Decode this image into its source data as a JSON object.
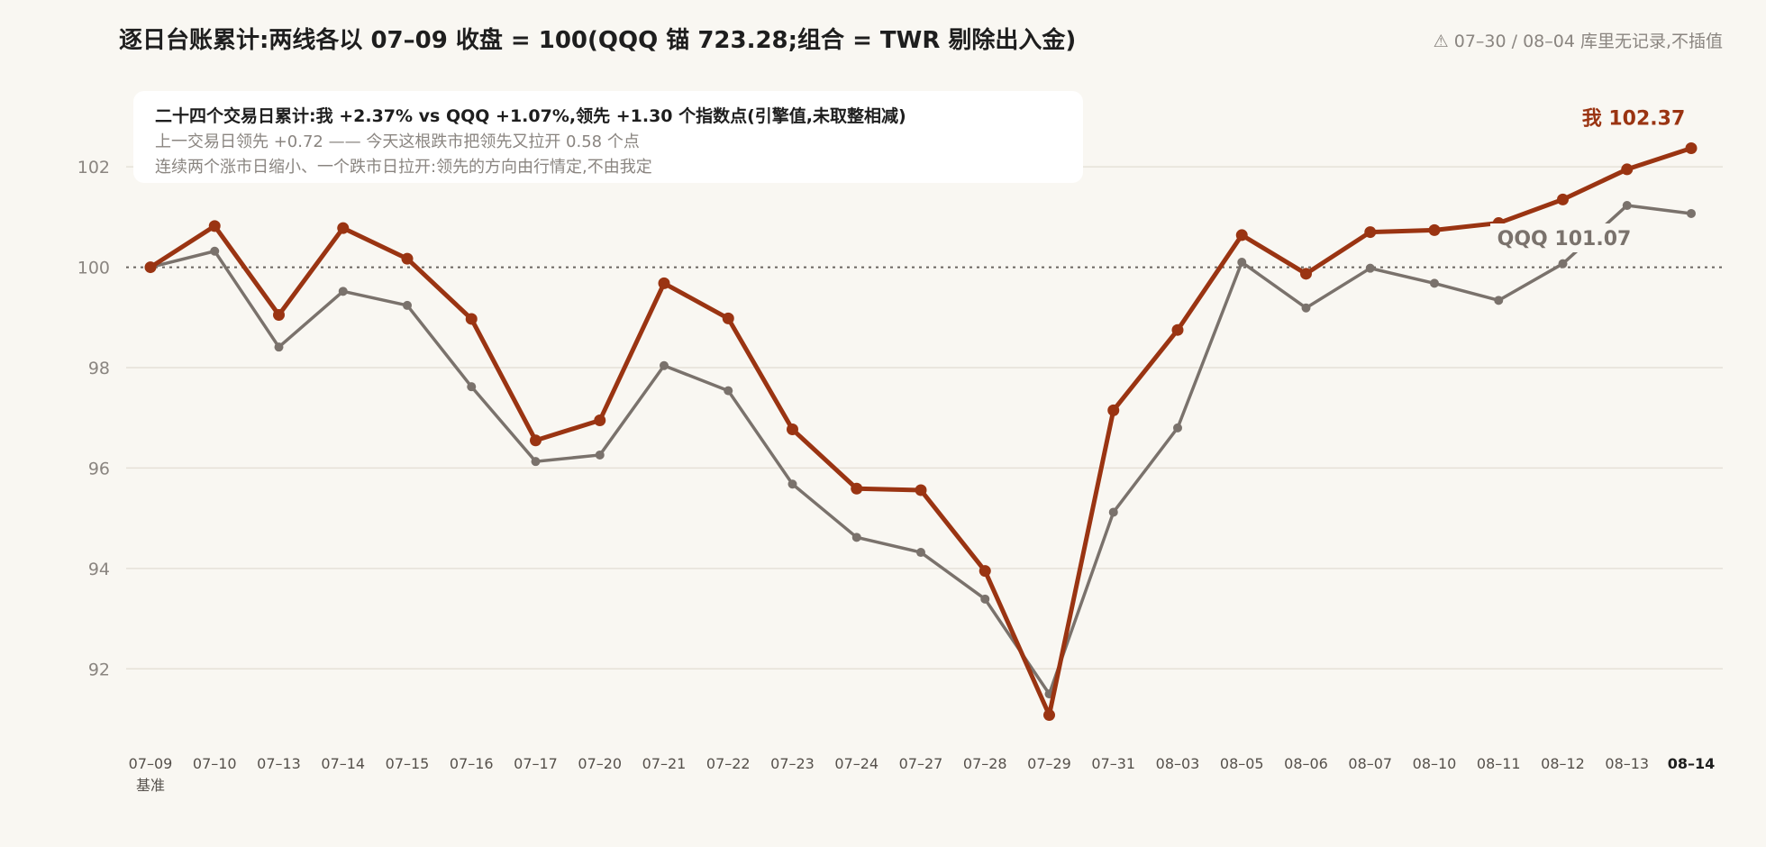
{
  "header": {
    "title": "逐日台账累计:两线各以 07–09 收盘 = 100(QQQ 锚 723.28;组合 = TWR 剔除出入金)",
    "note": "⚠ 07–30 / 08–04 库里无记录,不插值"
  },
  "summary": {
    "line1": "二十四个交易日累计:我 +2.37% vs QQQ +1.07%,领先 +1.30 个指数点(引擎值,未取整相减)",
    "line2": "上一交易日领先 +0.72 —— 今天这根跌市把领先又拉开 0.58 个点",
    "line3": "连续两个涨市日缩小、一个跌市日拉开:领先的方向由行情定,不由我定"
  },
  "colors": {
    "me": "#9a3412",
    "qqq": "#7a726c",
    "grid": "#e6e1d8",
    "baseline": "#6b6560",
    "axis_text": "#8a8580"
  },
  "chart_data": {
    "type": "line",
    "x": [
      "07–09",
      "07–10",
      "07–13",
      "07–14",
      "07–15",
      "07–16",
      "07–17",
      "07–20",
      "07–21",
      "07–22",
      "07–23",
      "07–24",
      "07–27",
      "07–28",
      "07–29",
      "07–31",
      "08–03",
      "08–05",
      "08–06",
      "08–07",
      "08–10",
      "08–11",
      "08–12",
      "08–13",
      "08–14"
    ],
    "x_sublabel": {
      "index": 0,
      "text": "基准"
    },
    "series": [
      {
        "name": "我",
        "end_label": "我 102.37",
        "color": "#9a3412",
        "values": [
          100.0,
          100.82,
          99.05,
          100.78,
          100.17,
          98.97,
          96.55,
          96.95,
          99.68,
          98.98,
          96.77,
          95.59,
          95.56,
          93.95,
          91.08,
          97.15,
          98.75,
          100.64,
          99.87,
          100.7,
          100.74,
          100.88,
          101.35,
          101.95,
          102.37
        ]
      },
      {
        "name": "QQQ",
        "end_label": "QQQ 101.07",
        "color": "#7a726c",
        "values": [
          100.0,
          100.32,
          98.41,
          99.52,
          99.24,
          97.62,
          96.13,
          96.26,
          98.04,
          97.54,
          95.68,
          94.62,
          94.32,
          93.39,
          91.5,
          95.12,
          96.8,
          100.1,
          99.19,
          99.98,
          99.68,
          99.34,
          100.07,
          101.23,
          101.07
        ]
      }
    ],
    "y_ticks": [
      92,
      94,
      96,
      98,
      100,
      102
    ],
    "ylim": [
      90.3,
      104.3
    ],
    "baseline": 100,
    "grid": true,
    "legend": "none",
    "xlabel": "",
    "ylabel": ""
  }
}
